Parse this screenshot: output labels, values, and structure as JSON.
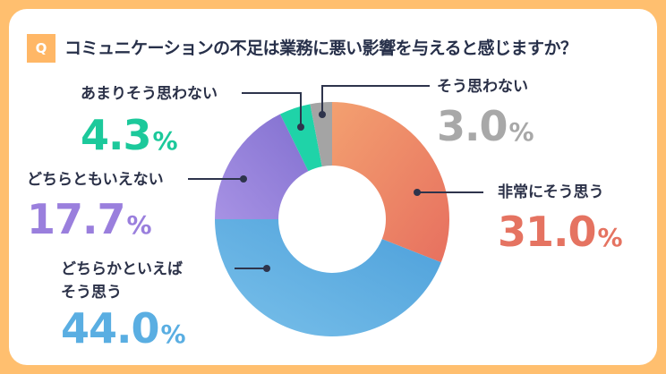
{
  "question_badge": "Q",
  "title": "コミュニケーションの不足は業務に悪い影響を与えると感じますか？",
  "chart_data": {
    "type": "pie",
    "donut": true,
    "title": "コミュニケーションの不足は業務に悪い影響を与えると感じますか？",
    "start": "top, clockwise",
    "unit": "%",
    "slices": [
      {
        "label": "非常にそう思う",
        "value": 31.0,
        "display": "31.0",
        "color": "#EC7E63",
        "label_color": "#E57361"
      },
      {
        "label": "どちらかといえばそう思う",
        "label_lines": [
          "どちらかといえば",
          "そう思う"
        ],
        "value": 44.0,
        "display": "44.0",
        "color": "#5AAEE0",
        "label_color": "#5AAEE2"
      },
      {
        "label": "どちらともいえない",
        "value": 17.7,
        "display": "17.7",
        "color": "#9A86DB",
        "label_color": "#9A7FDD"
      },
      {
        "label": "あまりそう思わない",
        "value": 4.3,
        "display": "4.3",
        "color": "#1FD3A8",
        "label_color": "#1CC99B"
      },
      {
        "label": "そう思わない",
        "value": 3.0,
        "display": "3.0",
        "color": "#A4A4A4",
        "label_color": "#A8A8A8"
      }
    ]
  }
}
